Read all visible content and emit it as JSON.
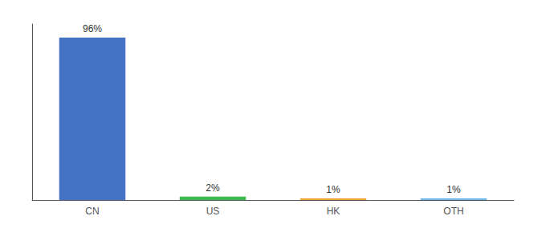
{
  "chart_data": {
    "type": "bar",
    "categories": [
      "CN",
      "US",
      "HK",
      "OTH"
    ],
    "values": [
      96,
      2,
      1,
      1
    ],
    "value_labels": [
      "96%",
      "2%",
      "1%",
      "1%"
    ],
    "colors": [
      "#4472c4",
      "#3dba4e",
      "#f0a030",
      "#6ab4e8"
    ],
    "ylim": [
      0,
      104
    ],
    "grid": false,
    "data_labels": true,
    "tick_labels": "x"
  }
}
